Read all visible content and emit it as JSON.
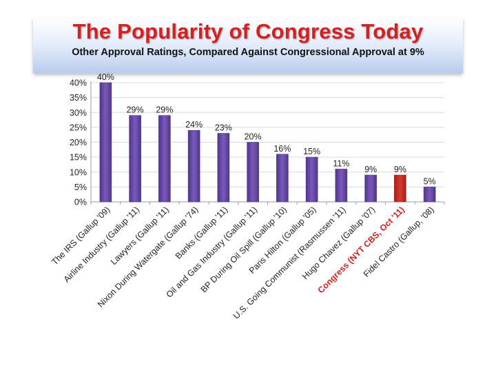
{
  "header": {
    "title": "The Popularity of Congress Today",
    "subtitle": "Other Approval Ratings, Compared Against Congressional Approval at 9%"
  },
  "colors": {
    "bar": "#7a5ab8",
    "bar_dark": "#4f3590",
    "highlight": "#d83a2c",
    "highlight_dark": "#a0221a",
    "highlight_label": "#d42020"
  },
  "chart_data": {
    "type": "bar",
    "title": "The Popularity of Congress Today",
    "subtitle": "Other Approval Ratings, Compared Against Congressional Approval at 9%",
    "xlabel": "",
    "ylabel": "",
    "ylim": [
      0,
      40
    ],
    "yticks": [
      "0%",
      "5%",
      "10%",
      "15%",
      "20%",
      "25%",
      "30%",
      "35%",
      "40%"
    ],
    "grid": true,
    "categories": [
      "The IRS (Gallup '09)",
      "Airline Industry (Gallup '11)",
      "Lawyers (Gallup '11)",
      "Nixon During Watergate (Gallup '74)",
      "Banks (Gallup '11)",
      "Oil and Gas Industry (Gallup '11)",
      "BP During Oil Spill (Gallup '10)",
      "Paris Hilton (Gallup '05)",
      "U.S. Going Communist (Rasmussen '11)",
      "Hugo Chavez (Gallup '07)",
      "Congress (NYT CBS, Oct '11)",
      "Fidel Castro (Gallup, '08)"
    ],
    "values": [
      40,
      29,
      29,
      24,
      23,
      20,
      16,
      15,
      11,
      9,
      9,
      5
    ],
    "data_labels": [
      "40%",
      "29%",
      "29%",
      "24%",
      "23%",
      "20%",
      "16%",
      "15%",
      "11%",
      "9%",
      "9%",
      "5%"
    ],
    "highlight_index": 10
  }
}
